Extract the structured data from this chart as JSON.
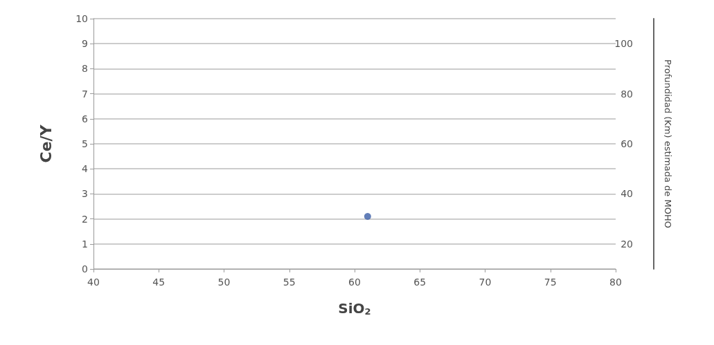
{
  "chart_data": {
    "type": "scatter",
    "xlabel": "SiO$_{2}$",
    "ylabel": "Ce/Y",
    "y2label": "Profundidad (Km) estimada de MOHO",
    "x": [
      61.0
    ],
    "series": [
      {
        "color": "#3b5ea6",
        "values": [
          2.1
        ]
      }
    ],
    "xlim": [
      40,
      80
    ],
    "xticks": [
      40,
      45,
      50,
      55,
      60,
      65,
      70,
      75,
      80
    ],
    "ylim": [
      0,
      10
    ],
    "yticks": [
      0,
      1,
      2,
      3,
      4,
      5,
      6,
      7,
      8,
      9,
      10
    ],
    "y2lim": [
      10,
      110
    ],
    "y2ticks": [
      20,
      40,
      60,
      80,
      100
    ],
    "grid": "y",
    "marker": "circle"
  }
}
